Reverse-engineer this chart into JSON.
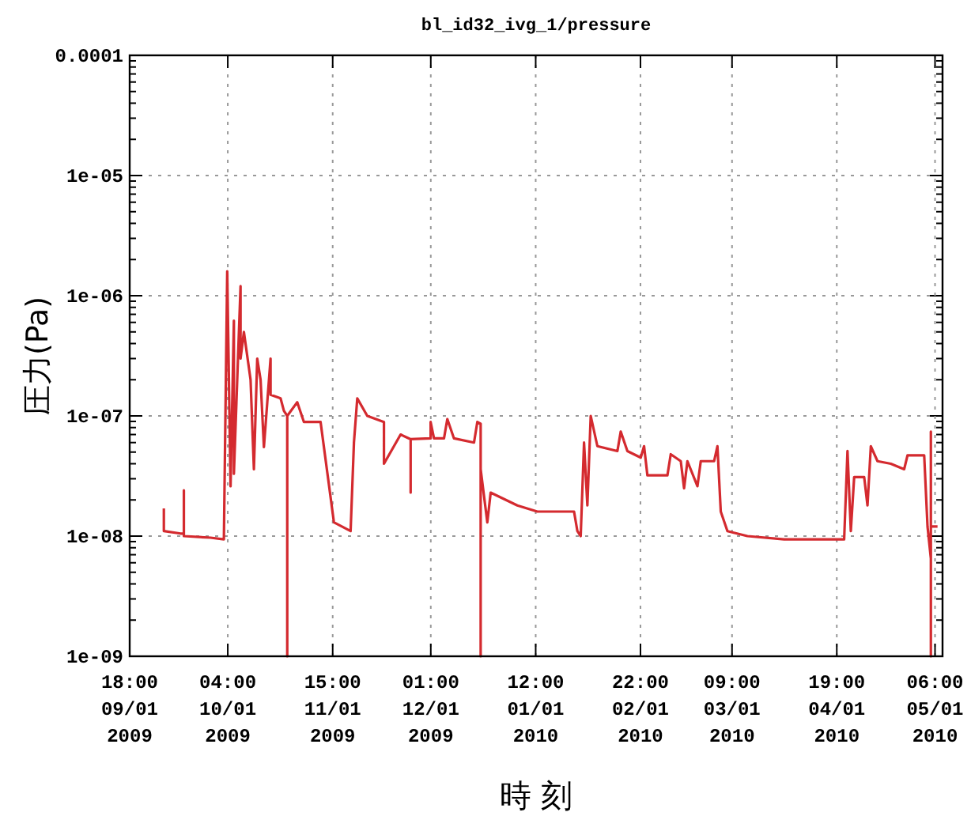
{
  "chart_data": {
    "type": "line",
    "title": "bl_id32_ivg_1/pressure",
    "xlabel": "時 刻",
    "ylabel": "圧力(Pa)",
    "log": "y",
    "grid": true,
    "marker": "none",
    "line_style": "solid",
    "xlim": [
      "2009-09-01T18:00",
      "2010-05-03T12:00"
    ],
    "xticks": [
      {
        "value": "2009-09-01T18:00",
        "label": "18:00\n09/01\n2009"
      },
      {
        "value": "2009-10-01T04:00",
        "label": "04:00\n10/01\n2009"
      },
      {
        "value": "2009-11-01T15:00",
        "label": "15:00\n11/01\n2009"
      },
      {
        "value": "2009-12-01T01:00",
        "label": "01:00\n12/01\n2009"
      },
      {
        "value": "2010-01-01T12:00",
        "label": "12:00\n01/01\n2010"
      },
      {
        "value": "2010-02-01T22:00",
        "label": "22:00\n02/01\n2010"
      },
      {
        "value": "2010-03-01T09:00",
        "label": "09:00\n03/01\n2010"
      },
      {
        "value": "2010-04-01T19:00",
        "label": "19:00\n04/01\n2010"
      },
      {
        "value": "2010-05-01T06:00",
        "label": "06:00\n05/01\n2010"
      }
    ],
    "ylim": [
      1e-09,
      0.0001
    ],
    "yticks": [
      {
        "value": 1e-09,
        "label": "1e-09"
      },
      {
        "value": 1e-08,
        "label": "1e-08"
      },
      {
        "value": 1e-07,
        "label": "1e-07"
      },
      {
        "value": 1e-06,
        "label": "1e-06"
      },
      {
        "value": 1e-05,
        "label": "1e-05"
      },
      {
        "value": 0.0001,
        "label": "0.0001"
      }
    ],
    "x": [
      "2009-09-12",
      "2009-09-12",
      "2009-09-17",
      "2009-09-18",
      "2009-09-18",
      "2009-09-18",
      "2009-09-26",
      "2009-09-30",
      "2009-10-01",
      "2009-10-02",
      "2009-10-03",
      "2009-10-03",
      "2009-10-05",
      "2009-10-05",
      "2009-10-06",
      "2009-10-08",
      "2009-10-09",
      "2009-10-10",
      "2009-10-11",
      "2009-10-12",
      "2009-10-14",
      "2009-10-14",
      "2009-10-17",
      "2009-10-18",
      "2009-10-19",
      "2009-10-19",
      "2009-10-19",
      "2009-10-22",
      "2009-10-24",
      "2009-10-29",
      "2009-11-02",
      "2009-11-07",
      "2009-11-08",
      "2009-11-09",
      "2009-11-12",
      "2009-11-17",
      "2009-11-17",
      "2009-11-22",
      "2009-11-25",
      "2009-11-25",
      "2009-11-25",
      "2009-12-01",
      "2009-12-01",
      "2009-12-02",
      "2009-12-05",
      "2009-12-06",
      "2009-12-08",
      "2009-12-14",
      "2009-12-15",
      "2009-12-16",
      "2009-12-16",
      "2009-12-16",
      "2009-12-18",
      "2009-12-19",
      "2009-12-27",
      "2010-01-02",
      "2010-01-06",
      "2010-01-13",
      "2010-01-14",
      "2010-01-15",
      "2010-01-16",
      "2010-01-17",
      "2010-01-18",
      "2010-01-20",
      "2010-01-26",
      "2010-01-27",
      "2010-01-29",
      "2010-02-02",
      "2010-02-03",
      "2010-02-04",
      "2010-02-10",
      "2010-02-11",
      "2010-02-14",
      "2010-02-15",
      "2010-02-16",
      "2010-02-19",
      "2010-02-20",
      "2010-02-24",
      "2010-02-25",
      "2010-02-26",
      "2010-02-28",
      "2010-03-06",
      "2010-03-17",
      "2010-04-04",
      "2010-04-05",
      "2010-04-06",
      "2010-04-07",
      "2010-04-10",
      "2010-04-11",
      "2010-04-12",
      "2010-04-14",
      "2010-04-18",
      "2010-04-22",
      "2010-04-23",
      "2010-04-28",
      "2010-04-29",
      "2010-04-30",
      "2010-04-30",
      "2010-04-30",
      "2010-04-30",
      "2010-05-02"
    ],
    "series": [
      {
        "color": "#d42a2f",
        "values": [
          1.7e-08,
          1.1e-08,
          1.05e-08,
          1.05e-08,
          2.4e-08,
          1e-08,
          9.7e-09,
          9.4e-09,
          1.6e-06,
          2.6e-08,
          6.2e-07,
          3.3e-08,
          1.2e-06,
          3e-07,
          5e-07,
          2e-07,
          3.6e-08,
          3e-07,
          2e-07,
          5.5e-08,
          3e-07,
          1.5e-07,
          1.4e-07,
          1.1e-07,
          1e-07,
          1e-09,
          1e-07,
          1.3e-07,
          8.9e-08,
          8.9e-08,
          1.3e-08,
          1.1e-08,
          6e-08,
          1.4e-07,
          1e-07,
          8.9e-08,
          4e-08,
          7e-08,
          6.4e-08,
          2.3e-08,
          6.4e-08,
          6.5e-08,
          8.9e-08,
          6.5e-08,
          6.5e-08,
          9.4e-08,
          6.5e-08,
          6e-08,
          8.9e-08,
          8.6e-08,
          1e-09,
          3.6e-08,
          1.3e-08,
          2.3e-08,
          1.8e-08,
          1.6e-08,
          1.6e-08,
          1.6e-08,
          1.1e-08,
          1e-08,
          6e-08,
          1.8e-08,
          1e-07,
          5.6e-08,
          5.1e-08,
          7.4e-08,
          5.1e-08,
          4.5e-08,
          5.6e-08,
          3.2e-08,
          3.2e-08,
          4.8e-08,
          4.2e-08,
          2.5e-08,
          4.2e-08,
          2.6e-08,
          4.2e-08,
          4.2e-08,
          5.6e-08,
          1.6e-08,
          1.1e-08,
          1e-08,
          9.4e-09,
          9.4e-09,
          5.1e-08,
          1.1e-08,
          3.1e-08,
          3.1e-08,
          1.8e-08,
          5.6e-08,
          4.2e-08,
          4e-08,
          3.6e-08,
          4.7e-08,
          4.7e-08,
          1.2e-08,
          6.5e-09,
          7.4e-08,
          1e-09,
          1.2e-08,
          1.2e-08
        ]
      }
    ]
  }
}
